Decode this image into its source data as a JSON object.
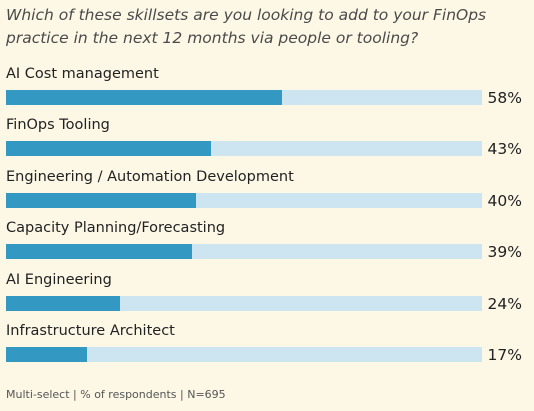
{
  "question": "Which of these skillsets are you looking to add to your FinOps practice in the next 12 months via people or tooling?",
  "footnote": "Multi-select | % of respondents | N=695",
  "colors": {
    "bar_fill": "#3399c3",
    "bar_track": "#cce5f1",
    "background": "#fdf8e6"
  },
  "chart_data": {
    "type": "bar",
    "orientation": "horizontal",
    "title": "Which of these skillsets are you looking to add to your FinOps practice in the next 12 months via people or tooling?",
    "categories": [
      "AI Cost management",
      "FinOps Tooling",
      "Engineering / Automation Development",
      "Capacity Planning/Forecasting",
      "AI Engineering",
      "Infrastructure Architect"
    ],
    "values": [
      58,
      43,
      40,
      39,
      24,
      17
    ],
    "value_labels": [
      "58%",
      "43%",
      "40%",
      "39%",
      "24%",
      "17%"
    ],
    "unit": "%",
    "xlim": [
      0,
      100
    ]
  }
}
